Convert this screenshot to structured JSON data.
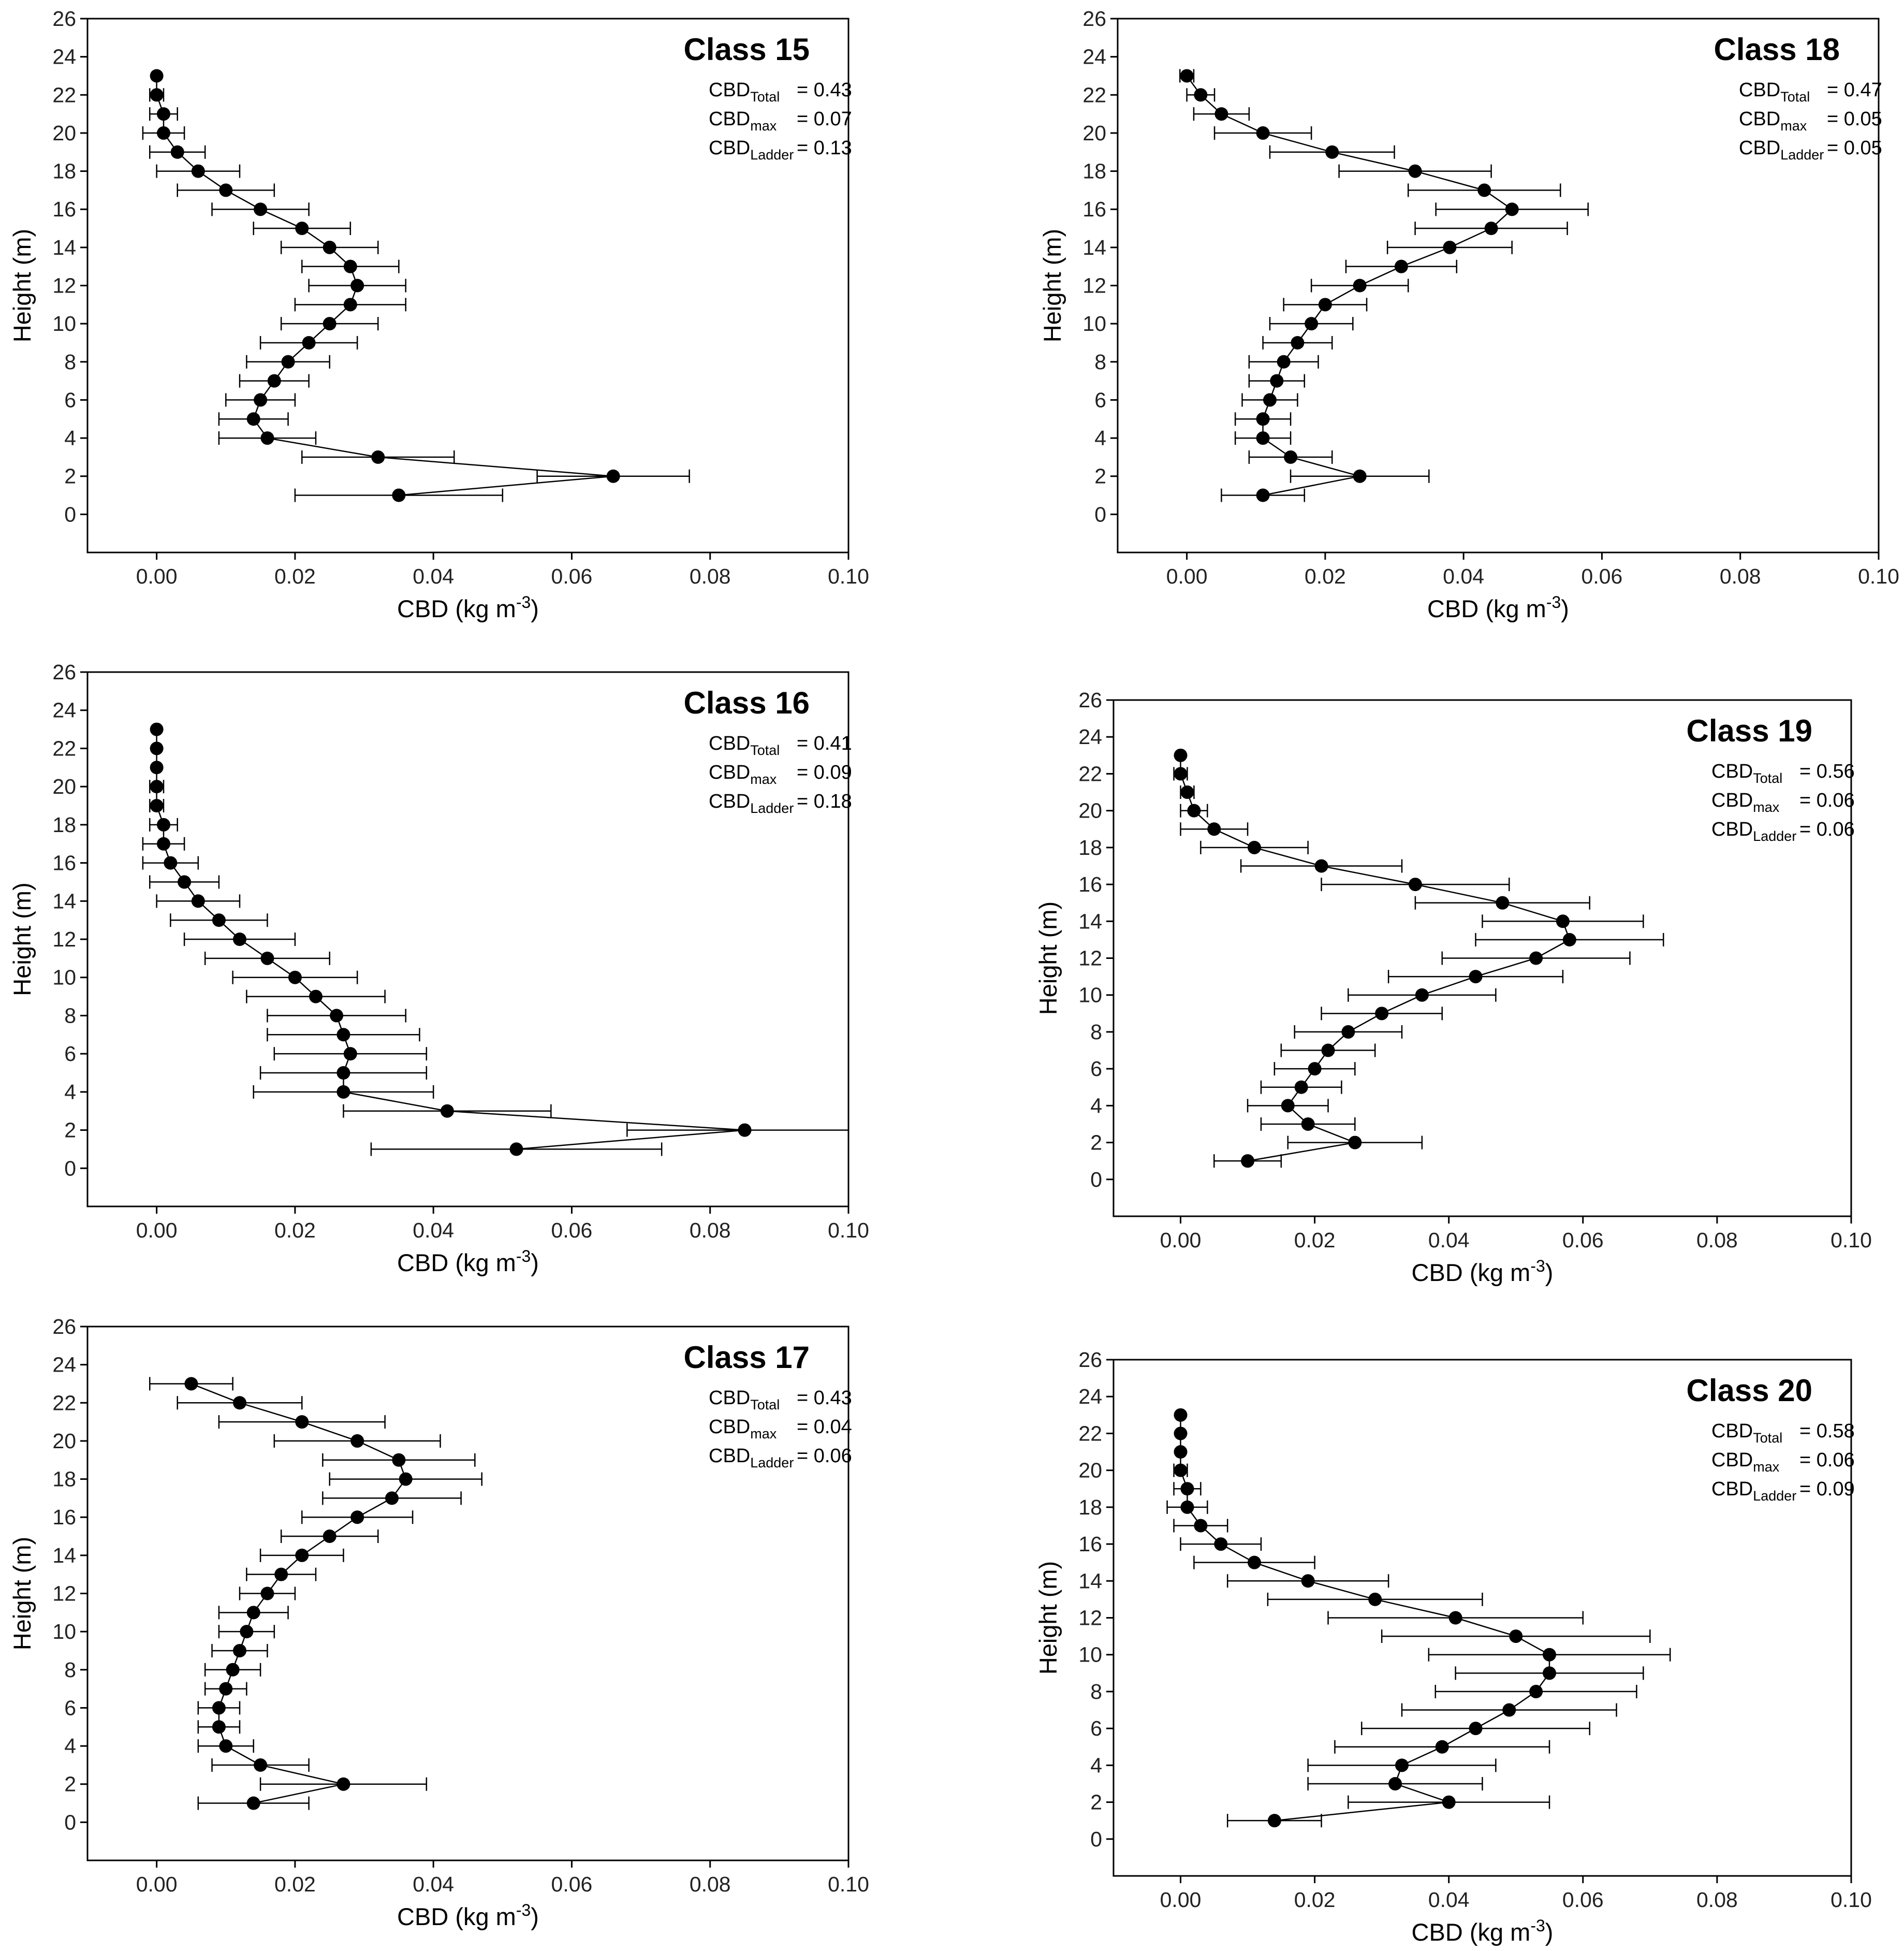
{
  "figure": {
    "description": ""
  },
  "chart_data": [
    {
      "type": "line",
      "title": "Class 15",
      "xlabel": "CBD (kg m",
      "xlabel_sup": "-3",
      "xlabel_end": ")",
      "ylabel": "Height (m)",
      "xlim": [
        -0.01,
        0.1
      ],
      "ylim": [
        -2,
        26
      ],
      "xticks": [
        "0.00",
        "0.02",
        "0.04",
        "0.06",
        "0.08",
        "0.10"
      ],
      "yticks": [
        "0",
        "2",
        "4",
        "6",
        "8",
        "10",
        "12",
        "14",
        "16",
        "18",
        "20",
        "22",
        "24",
        "26"
      ],
      "stats": [
        {
          "label": "CBD",
          "sub": "Total",
          "value": "= 0.43"
        },
        {
          "label": "CBD",
          "sub": "max",
          "value": "= 0.07"
        },
        {
          "label": "CBD",
          "sub": "Ladder",
          "value": "= 0.13"
        }
      ],
      "points": [
        {
          "y": 23,
          "x": 0.0,
          "xerr": 0.0
        },
        {
          "y": 22,
          "x": 0.0,
          "xerr": 0.001
        },
        {
          "y": 21,
          "x": 0.001,
          "xerr": 0.002
        },
        {
          "y": 20,
          "x": 0.001,
          "xerr": 0.003
        },
        {
          "y": 19,
          "x": 0.003,
          "xerr": 0.004
        },
        {
          "y": 18,
          "x": 0.006,
          "xerr": 0.006
        },
        {
          "y": 17,
          "x": 0.01,
          "xerr": 0.007
        },
        {
          "y": 16,
          "x": 0.015,
          "xerr": 0.007
        },
        {
          "y": 15,
          "x": 0.021,
          "xerr": 0.007
        },
        {
          "y": 14,
          "x": 0.025,
          "xerr": 0.007
        },
        {
          "y": 13,
          "x": 0.028,
          "xerr": 0.007
        },
        {
          "y": 12,
          "x": 0.029,
          "xerr": 0.007
        },
        {
          "y": 11,
          "x": 0.028,
          "xerr": 0.008
        },
        {
          "y": 10,
          "x": 0.025,
          "xerr": 0.007
        },
        {
          "y": 9,
          "x": 0.022,
          "xerr": 0.007
        },
        {
          "y": 8,
          "x": 0.019,
          "xerr": 0.006
        },
        {
          "y": 7,
          "x": 0.017,
          "xerr": 0.005
        },
        {
          "y": 6,
          "x": 0.015,
          "xerr": 0.005
        },
        {
          "y": 5,
          "x": 0.014,
          "xerr": 0.005
        },
        {
          "y": 4,
          "x": 0.016,
          "xerr": 0.007
        },
        {
          "y": 3,
          "x": 0.032,
          "xerr": 0.011
        },
        {
          "y": 2,
          "x": 0.066,
          "xerr": 0.011
        },
        {
          "y": 1,
          "x": 0.035,
          "xerr": 0.015
        }
      ]
    },
    {
      "type": "line",
      "title": "Class 18",
      "xlabel": "CBD (kg m",
      "xlabel_sup": "-3",
      "xlabel_end": ")",
      "ylabel": "Height (m)",
      "xlim": [
        -0.01,
        0.1
      ],
      "ylim": [
        -2,
        26
      ],
      "xticks": [
        "0.00",
        "0.02",
        "0.04",
        "0.06",
        "0.08",
        "0.10"
      ],
      "yticks": [
        "0",
        "2",
        "4",
        "6",
        "8",
        "10",
        "12",
        "14",
        "16",
        "18",
        "20",
        "22",
        "24",
        "26"
      ],
      "stats": [
        {
          "label": "CBD",
          "sub": "Total",
          "value": "= 0.47"
        },
        {
          "label": "CBD",
          "sub": "max",
          "value": "= 0.05"
        },
        {
          "label": "CBD",
          "sub": "Ladder",
          "value": "= 0.05"
        }
      ],
      "points": [
        {
          "y": 23,
          "x": 0.0,
          "xerr": 0.001
        },
        {
          "y": 22,
          "x": 0.002,
          "xerr": 0.002
        },
        {
          "y": 21,
          "x": 0.005,
          "xerr": 0.004
        },
        {
          "y": 20,
          "x": 0.011,
          "xerr": 0.007
        },
        {
          "y": 19,
          "x": 0.021,
          "xerr": 0.009
        },
        {
          "y": 18,
          "x": 0.033,
          "xerr": 0.011
        },
        {
          "y": 17,
          "x": 0.043,
          "xerr": 0.011
        },
        {
          "y": 16,
          "x": 0.047,
          "xerr": 0.011
        },
        {
          "y": 15,
          "x": 0.044,
          "xerr": 0.011
        },
        {
          "y": 14,
          "x": 0.038,
          "xerr": 0.009
        },
        {
          "y": 13,
          "x": 0.031,
          "xerr": 0.008
        },
        {
          "y": 12,
          "x": 0.025,
          "xerr": 0.007
        },
        {
          "y": 11,
          "x": 0.02,
          "xerr": 0.006
        },
        {
          "y": 10,
          "x": 0.018,
          "xerr": 0.006
        },
        {
          "y": 9,
          "x": 0.016,
          "xerr": 0.005
        },
        {
          "y": 8,
          "x": 0.014,
          "xerr": 0.005
        },
        {
          "y": 7,
          "x": 0.013,
          "xerr": 0.004
        },
        {
          "y": 6,
          "x": 0.012,
          "xerr": 0.004
        },
        {
          "y": 5,
          "x": 0.011,
          "xerr": 0.004
        },
        {
          "y": 4,
          "x": 0.011,
          "xerr": 0.004
        },
        {
          "y": 3,
          "x": 0.015,
          "xerr": 0.006
        },
        {
          "y": 2,
          "x": 0.025,
          "xerr": 0.01
        },
        {
          "y": 1,
          "x": 0.011,
          "xerr": 0.006
        }
      ]
    },
    {
      "type": "line",
      "title": "Class 16",
      "xlabel": "CBD (kg m",
      "xlabel_sup": "-3",
      "xlabel_end": ")",
      "ylabel": "Height (m)",
      "xlim": [
        -0.01,
        0.1
      ],
      "ylim": [
        -2,
        26
      ],
      "xticks": [
        "0.00",
        "0.02",
        "0.04",
        "0.06",
        "0.08",
        "0.10"
      ],
      "yticks": [
        "0",
        "2",
        "4",
        "6",
        "8",
        "10",
        "12",
        "14",
        "16",
        "18",
        "20",
        "22",
        "24",
        "26"
      ],
      "stats": [
        {
          "label": "CBD",
          "sub": "Total",
          "value": "= 0.41"
        },
        {
          "label": "CBD",
          "sub": "max",
          "value": "= 0.09"
        },
        {
          "label": "CBD",
          "sub": "Ladder",
          "value": "= 0.18"
        }
      ],
      "points": [
        {
          "y": 23,
          "x": 0.0,
          "xerr": 0.0
        },
        {
          "y": 22,
          "x": 0.0,
          "xerr": 0.0
        },
        {
          "y": 21,
          "x": 0.0,
          "xerr": 0.0
        },
        {
          "y": 20,
          "x": 0.0,
          "xerr": 0.001
        },
        {
          "y": 19,
          "x": 0.0,
          "xerr": 0.001
        },
        {
          "y": 18,
          "x": 0.001,
          "xerr": 0.002
        },
        {
          "y": 17,
          "x": 0.001,
          "xerr": 0.003
        },
        {
          "y": 16,
          "x": 0.002,
          "xerr": 0.004
        },
        {
          "y": 15,
          "x": 0.004,
          "xerr": 0.005
        },
        {
          "y": 14,
          "x": 0.006,
          "xerr": 0.006
        },
        {
          "y": 13,
          "x": 0.009,
          "xerr": 0.007
        },
        {
          "y": 12,
          "x": 0.012,
          "xerr": 0.008
        },
        {
          "y": 11,
          "x": 0.016,
          "xerr": 0.009
        },
        {
          "y": 10,
          "x": 0.02,
          "xerr": 0.009
        },
        {
          "y": 9,
          "x": 0.023,
          "xerr": 0.01
        },
        {
          "y": 8,
          "x": 0.026,
          "xerr": 0.01
        },
        {
          "y": 7,
          "x": 0.027,
          "xerr": 0.011
        },
        {
          "y": 6,
          "x": 0.028,
          "xerr": 0.011
        },
        {
          "y": 5,
          "x": 0.027,
          "xerr": 0.012
        },
        {
          "y": 4,
          "x": 0.027,
          "xerr": 0.013
        },
        {
          "y": 3,
          "x": 0.042,
          "xerr": 0.015
        },
        {
          "y": 2,
          "x": 0.085,
          "xerr": 0.017
        },
        {
          "y": 1,
          "x": 0.052,
          "xerr": 0.021
        }
      ]
    },
    {
      "type": "line",
      "title": "Class 19",
      "xlabel": "CBD (kg m",
      "xlabel_sup": "-3",
      "xlabel_end": ")",
      "ylabel": "Height (m)",
      "xlim": [
        -0.01,
        0.1
      ],
      "ylim": [
        -2,
        26
      ],
      "xticks": [
        "0.00",
        "0.02",
        "0.04",
        "0.06",
        "0.08",
        "0.10"
      ],
      "yticks": [
        "0",
        "2",
        "4",
        "6",
        "8",
        "10",
        "12",
        "14",
        "16",
        "18",
        "20",
        "22",
        "24",
        "26"
      ],
      "stats": [
        {
          "label": "CBD",
          "sub": "Total",
          "value": "= 0.56"
        },
        {
          "label": "CBD",
          "sub": "max",
          "value": "= 0.06"
        },
        {
          "label": "CBD",
          "sub": "Ladder",
          "value": "= 0.06"
        }
      ],
      "points": [
        {
          "y": 23,
          "x": 0.0,
          "xerr": 0.0
        },
        {
          "y": 22,
          "x": 0.0,
          "xerr": 0.001
        },
        {
          "y": 21,
          "x": 0.001,
          "xerr": 0.001
        },
        {
          "y": 20,
          "x": 0.002,
          "xerr": 0.002
        },
        {
          "y": 19,
          "x": 0.005,
          "xerr": 0.005
        },
        {
          "y": 18,
          "x": 0.011,
          "xerr": 0.008
        },
        {
          "y": 17,
          "x": 0.021,
          "xerr": 0.012
        },
        {
          "y": 16,
          "x": 0.035,
          "xerr": 0.014
        },
        {
          "y": 15,
          "x": 0.048,
          "xerr": 0.013
        },
        {
          "y": 14,
          "x": 0.057,
          "xerr": 0.012
        },
        {
          "y": 13,
          "x": 0.058,
          "xerr": 0.014
        },
        {
          "y": 12,
          "x": 0.053,
          "xerr": 0.014
        },
        {
          "y": 11,
          "x": 0.044,
          "xerr": 0.013
        },
        {
          "y": 10,
          "x": 0.036,
          "xerr": 0.011
        },
        {
          "y": 9,
          "x": 0.03,
          "xerr": 0.009
        },
        {
          "y": 8,
          "x": 0.025,
          "xerr": 0.008
        },
        {
          "y": 7,
          "x": 0.022,
          "xerr": 0.007
        },
        {
          "y": 6,
          "x": 0.02,
          "xerr": 0.006
        },
        {
          "y": 5,
          "x": 0.018,
          "xerr": 0.006
        },
        {
          "y": 4,
          "x": 0.016,
          "xerr": 0.006
        },
        {
          "y": 3,
          "x": 0.019,
          "xerr": 0.007
        },
        {
          "y": 2,
          "x": 0.026,
          "xerr": 0.01
        },
        {
          "y": 1,
          "x": 0.01,
          "xerr": 0.005
        }
      ]
    },
    {
      "type": "line",
      "title": "Class 17",
      "xlabel": "CBD (kg m",
      "xlabel_sup": "-3",
      "xlabel_end": ")",
      "ylabel": "Height (m)",
      "xlim": [
        -0.01,
        0.1
      ],
      "ylim": [
        -2,
        26
      ],
      "xticks": [
        "0.00",
        "0.02",
        "0.04",
        "0.06",
        "0.08",
        "0.10"
      ],
      "yticks": [
        "0",
        "2",
        "4",
        "6",
        "8",
        "10",
        "12",
        "14",
        "16",
        "18",
        "20",
        "22",
        "24",
        "26"
      ],
      "stats": [
        {
          "label": "CBD",
          "sub": "Total",
          "value": "= 0.43"
        },
        {
          "label": "CBD",
          "sub": "max",
          "value": "= 0.04"
        },
        {
          "label": "CBD",
          "sub": "Ladder",
          "value": "= 0.06"
        }
      ],
      "points": [
        {
          "y": 23,
          "x": 0.005,
          "xerr": 0.006
        },
        {
          "y": 22,
          "x": 0.012,
          "xerr": 0.009
        },
        {
          "y": 21,
          "x": 0.021,
          "xerr": 0.012
        },
        {
          "y": 20,
          "x": 0.029,
          "xerr": 0.012
        },
        {
          "y": 19,
          "x": 0.035,
          "xerr": 0.011
        },
        {
          "y": 18,
          "x": 0.036,
          "xerr": 0.011
        },
        {
          "y": 17,
          "x": 0.034,
          "xerr": 0.01
        },
        {
          "y": 16,
          "x": 0.029,
          "xerr": 0.008
        },
        {
          "y": 15,
          "x": 0.025,
          "xerr": 0.007
        },
        {
          "y": 14,
          "x": 0.021,
          "xerr": 0.006
        },
        {
          "y": 13,
          "x": 0.018,
          "xerr": 0.005
        },
        {
          "y": 12,
          "x": 0.016,
          "xerr": 0.004
        },
        {
          "y": 11,
          "x": 0.014,
          "xerr": 0.005
        },
        {
          "y": 10,
          "x": 0.013,
          "xerr": 0.004
        },
        {
          "y": 9,
          "x": 0.012,
          "xerr": 0.004
        },
        {
          "y": 8,
          "x": 0.011,
          "xerr": 0.004
        },
        {
          "y": 7,
          "x": 0.01,
          "xerr": 0.003
        },
        {
          "y": 6,
          "x": 0.009,
          "xerr": 0.003
        },
        {
          "y": 5,
          "x": 0.009,
          "xerr": 0.003
        },
        {
          "y": 4,
          "x": 0.01,
          "xerr": 0.004
        },
        {
          "y": 3,
          "x": 0.015,
          "xerr": 0.007
        },
        {
          "y": 2,
          "x": 0.027,
          "xerr": 0.012
        },
        {
          "y": 1,
          "x": 0.014,
          "xerr": 0.008
        }
      ]
    },
    {
      "type": "line",
      "title": "Class 20",
      "xlabel": "CBD (kg m",
      "xlabel_sup": "-3",
      "xlabel_end": ")",
      "ylabel": "Height (m)",
      "xlim": [
        -0.01,
        0.1
      ],
      "ylim": [
        -2,
        26
      ],
      "xticks": [
        "0.00",
        "0.02",
        "0.04",
        "0.06",
        "0.08",
        "0.10"
      ],
      "yticks": [
        "0",
        "2",
        "4",
        "6",
        "8",
        "10",
        "12",
        "14",
        "16",
        "18",
        "20",
        "22",
        "24",
        "26"
      ],
      "stats": [
        {
          "label": "CBD",
          "sub": "Total",
          "value": "= 0.58"
        },
        {
          "label": "CBD",
          "sub": "max",
          "value": "= 0.06"
        },
        {
          "label": "CBD",
          "sub": "Ladder",
          "value": "= 0.09"
        }
      ],
      "points": [
        {
          "y": 23,
          "x": 0.0,
          "xerr": 0.0
        },
        {
          "y": 22,
          "x": 0.0,
          "xerr": 0.0
        },
        {
          "y": 21,
          "x": 0.0,
          "xerr": 0.0
        },
        {
          "y": 20,
          "x": 0.0,
          "xerr": 0.001
        },
        {
          "y": 19,
          "x": 0.001,
          "xerr": 0.002
        },
        {
          "y": 18,
          "x": 0.001,
          "xerr": 0.003
        },
        {
          "y": 17,
          "x": 0.003,
          "xerr": 0.004
        },
        {
          "y": 16,
          "x": 0.006,
          "xerr": 0.006
        },
        {
          "y": 15,
          "x": 0.011,
          "xerr": 0.009
        },
        {
          "y": 14,
          "x": 0.019,
          "xerr": 0.012
        },
        {
          "y": 13,
          "x": 0.029,
          "xerr": 0.016
        },
        {
          "y": 12,
          "x": 0.041,
          "xerr": 0.019
        },
        {
          "y": 11,
          "x": 0.05,
          "xerr": 0.02
        },
        {
          "y": 10,
          "x": 0.055,
          "xerr": 0.018
        },
        {
          "y": 9,
          "x": 0.055,
          "xerr": 0.014
        },
        {
          "y": 8,
          "x": 0.053,
          "xerr": 0.015
        },
        {
          "y": 7,
          "x": 0.049,
          "xerr": 0.016
        },
        {
          "y": 6,
          "x": 0.044,
          "xerr": 0.017
        },
        {
          "y": 5,
          "x": 0.039,
          "xerr": 0.016
        },
        {
          "y": 4,
          "x": 0.033,
          "xerr": 0.014
        },
        {
          "y": 3,
          "x": 0.032,
          "xerr": 0.013
        },
        {
          "y": 2,
          "x": 0.04,
          "xerr": 0.015
        },
        {
          "y": 1,
          "x": 0.014,
          "xerr": 0.007
        }
      ]
    }
  ]
}
